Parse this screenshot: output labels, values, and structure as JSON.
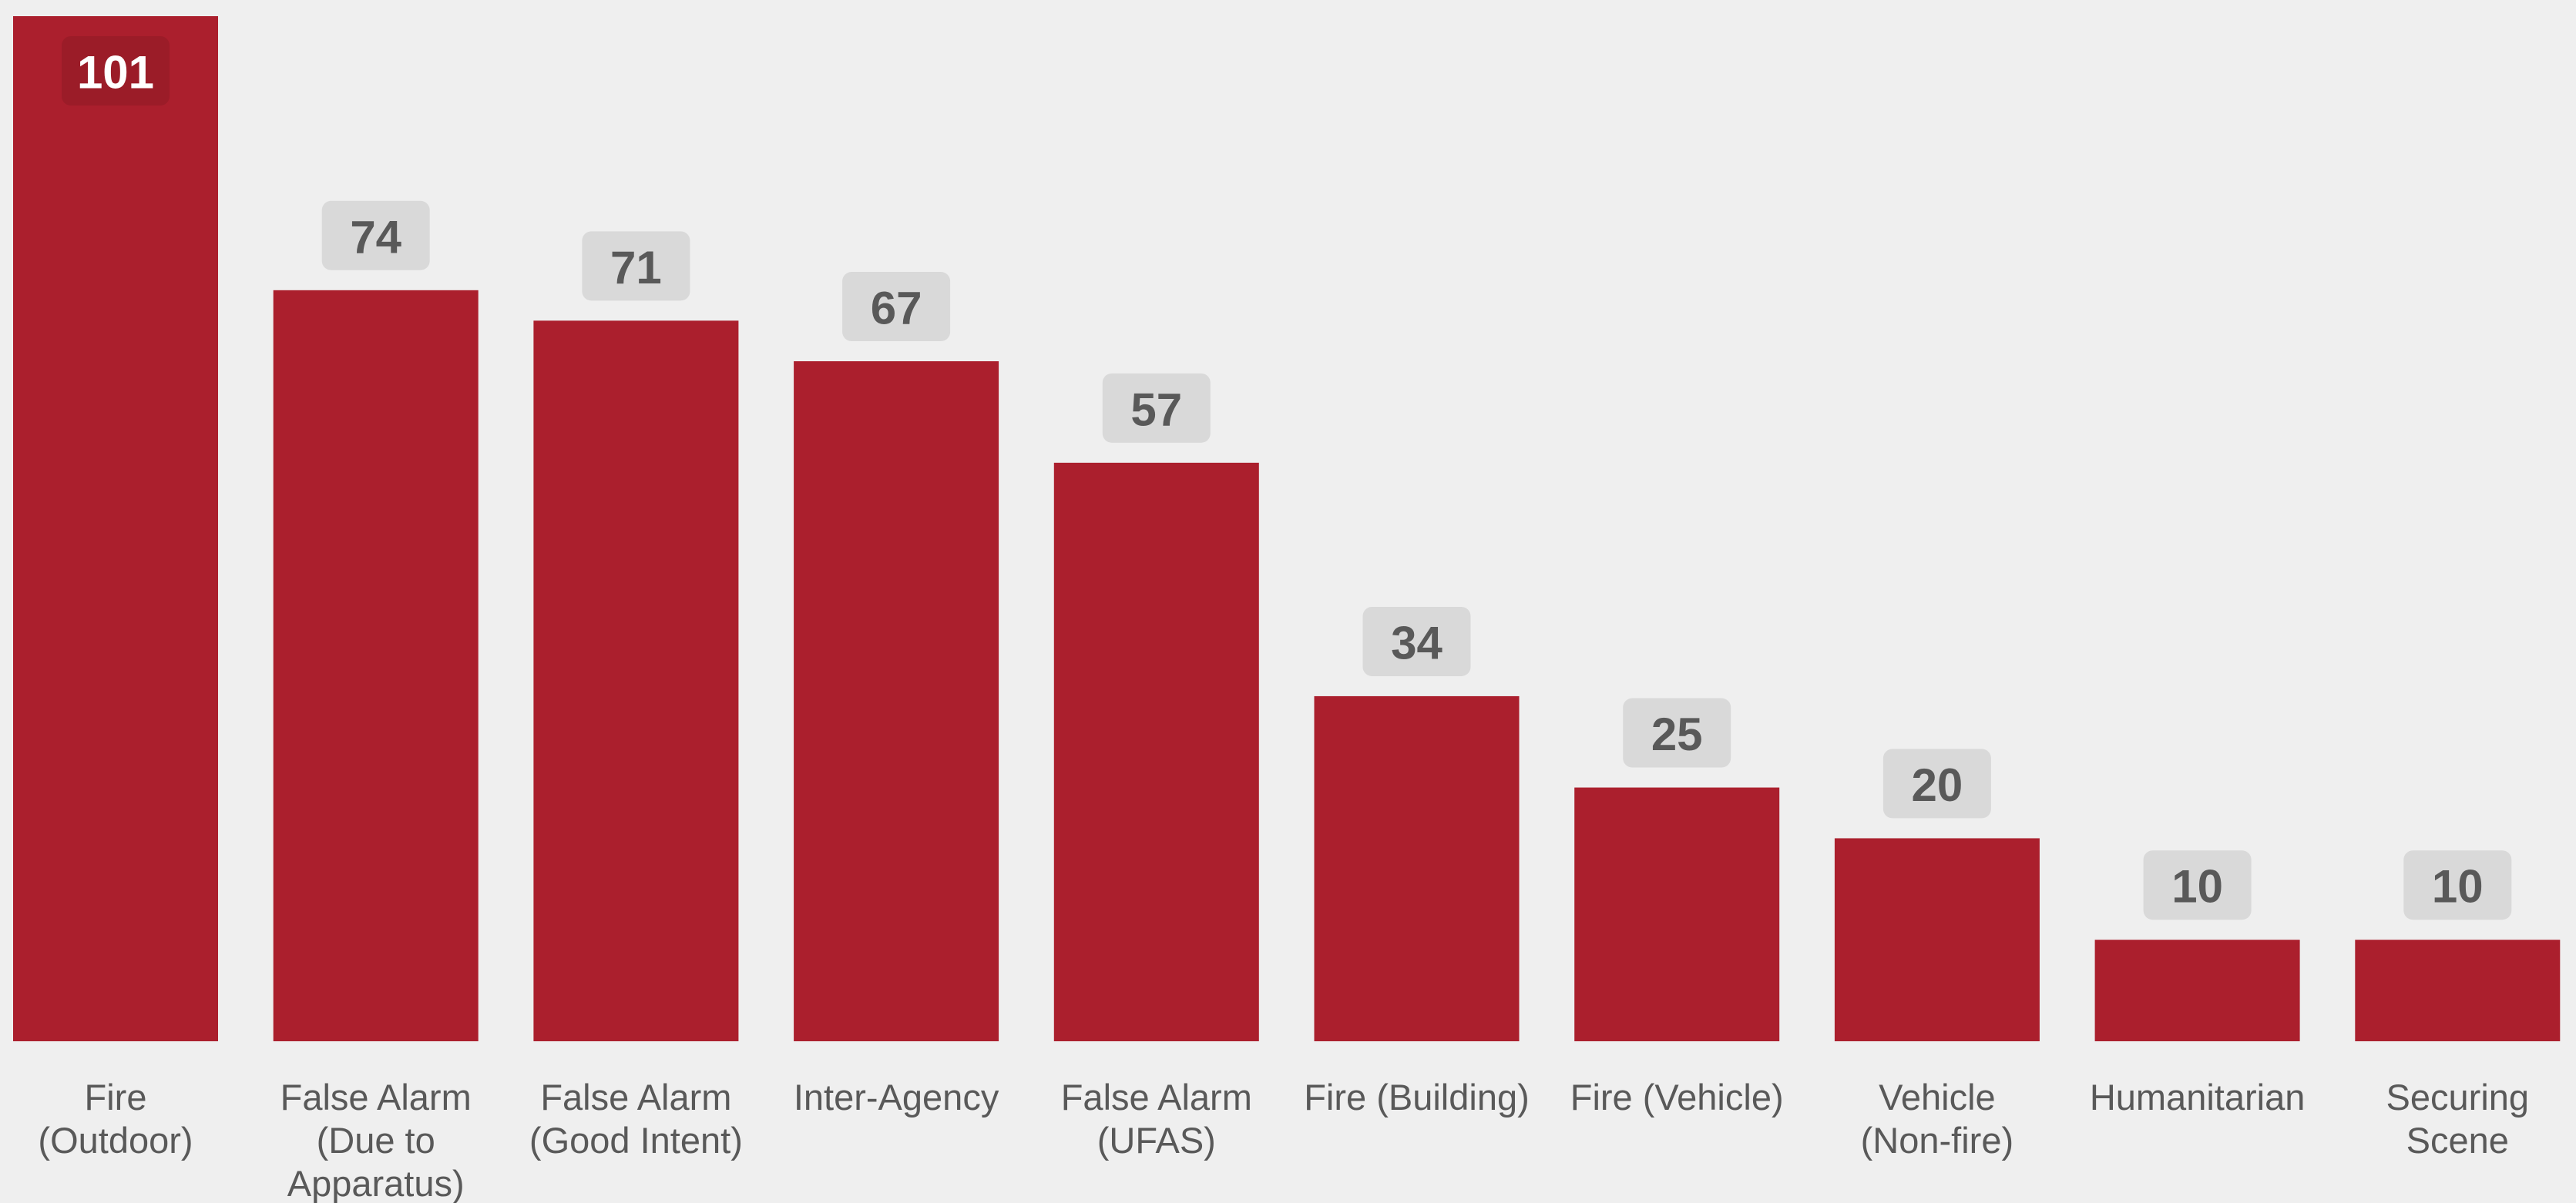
{
  "chart_data": {
    "type": "bar",
    "categories": [
      "Fire\n(Outdoor)",
      "False Alarm\n(Due to\nApparatus)",
      "False Alarm\n(Good Intent)",
      "Inter-Agency",
      "False Alarm\n(UFAS)",
      "Fire (Building)",
      "Fire (Vehicle)",
      "Vehicle\n(Non-fire)",
      "Humanitarian",
      "Securing\nScene"
    ],
    "values": [
      101,
      74,
      71,
      67,
      57,
      34,
      25,
      20,
      10,
      10
    ],
    "color": "#ab1f2d",
    "ylim": [
      0,
      101
    ]
  }
}
